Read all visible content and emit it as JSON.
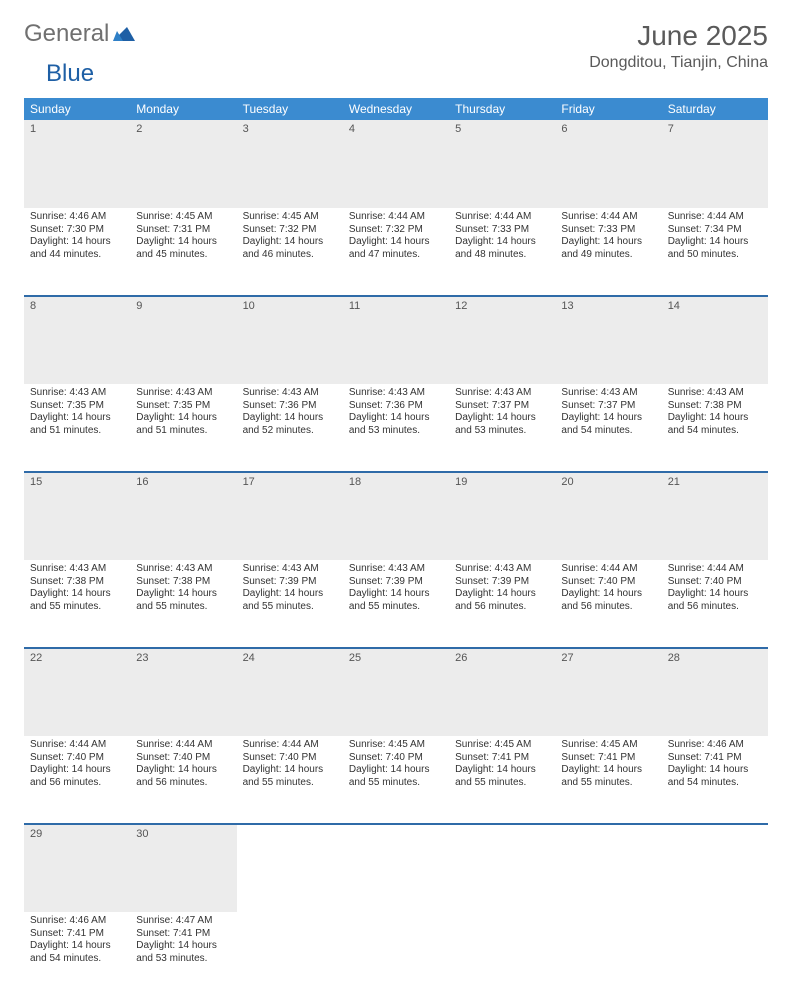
{
  "logo": {
    "part1": "General",
    "part2": "Blue"
  },
  "header": {
    "month_title": "June 2025",
    "location": "Dongditou, Tianjin, China"
  },
  "colors": {
    "header_bg": "#3b8bd0",
    "header_text": "#ffffff",
    "row_border": "#2f6ba8",
    "daynum_bg": "#ececec",
    "body_text": "#333333",
    "title_text": "#5a5a5a",
    "logo_blue": "#1e5fa5"
  },
  "daynames": [
    "Sunday",
    "Monday",
    "Tuesday",
    "Wednesday",
    "Thursday",
    "Friday",
    "Saturday"
  ],
  "weeks": [
    [
      {
        "n": "1",
        "sr": "Sunrise: 4:46 AM",
        "ss": "Sunset: 7:30 PM",
        "d1": "Daylight: 14 hours",
        "d2": "and 44 minutes."
      },
      {
        "n": "2",
        "sr": "Sunrise: 4:45 AM",
        "ss": "Sunset: 7:31 PM",
        "d1": "Daylight: 14 hours",
        "d2": "and 45 minutes."
      },
      {
        "n": "3",
        "sr": "Sunrise: 4:45 AM",
        "ss": "Sunset: 7:32 PM",
        "d1": "Daylight: 14 hours",
        "d2": "and 46 minutes."
      },
      {
        "n": "4",
        "sr": "Sunrise: 4:44 AM",
        "ss": "Sunset: 7:32 PM",
        "d1": "Daylight: 14 hours",
        "d2": "and 47 minutes."
      },
      {
        "n": "5",
        "sr": "Sunrise: 4:44 AM",
        "ss": "Sunset: 7:33 PM",
        "d1": "Daylight: 14 hours",
        "d2": "and 48 minutes."
      },
      {
        "n": "6",
        "sr": "Sunrise: 4:44 AM",
        "ss": "Sunset: 7:33 PM",
        "d1": "Daylight: 14 hours",
        "d2": "and 49 minutes."
      },
      {
        "n": "7",
        "sr": "Sunrise: 4:44 AM",
        "ss": "Sunset: 7:34 PM",
        "d1": "Daylight: 14 hours",
        "d2": "and 50 minutes."
      }
    ],
    [
      {
        "n": "8",
        "sr": "Sunrise: 4:43 AM",
        "ss": "Sunset: 7:35 PM",
        "d1": "Daylight: 14 hours",
        "d2": "and 51 minutes."
      },
      {
        "n": "9",
        "sr": "Sunrise: 4:43 AM",
        "ss": "Sunset: 7:35 PM",
        "d1": "Daylight: 14 hours",
        "d2": "and 51 minutes."
      },
      {
        "n": "10",
        "sr": "Sunrise: 4:43 AM",
        "ss": "Sunset: 7:36 PM",
        "d1": "Daylight: 14 hours",
        "d2": "and 52 minutes."
      },
      {
        "n": "11",
        "sr": "Sunrise: 4:43 AM",
        "ss": "Sunset: 7:36 PM",
        "d1": "Daylight: 14 hours",
        "d2": "and 53 minutes."
      },
      {
        "n": "12",
        "sr": "Sunrise: 4:43 AM",
        "ss": "Sunset: 7:37 PM",
        "d1": "Daylight: 14 hours",
        "d2": "and 53 minutes."
      },
      {
        "n": "13",
        "sr": "Sunrise: 4:43 AM",
        "ss": "Sunset: 7:37 PM",
        "d1": "Daylight: 14 hours",
        "d2": "and 54 minutes."
      },
      {
        "n": "14",
        "sr": "Sunrise: 4:43 AM",
        "ss": "Sunset: 7:38 PM",
        "d1": "Daylight: 14 hours",
        "d2": "and 54 minutes."
      }
    ],
    [
      {
        "n": "15",
        "sr": "Sunrise: 4:43 AM",
        "ss": "Sunset: 7:38 PM",
        "d1": "Daylight: 14 hours",
        "d2": "and 55 minutes."
      },
      {
        "n": "16",
        "sr": "Sunrise: 4:43 AM",
        "ss": "Sunset: 7:38 PM",
        "d1": "Daylight: 14 hours",
        "d2": "and 55 minutes."
      },
      {
        "n": "17",
        "sr": "Sunrise: 4:43 AM",
        "ss": "Sunset: 7:39 PM",
        "d1": "Daylight: 14 hours",
        "d2": "and 55 minutes."
      },
      {
        "n": "18",
        "sr": "Sunrise: 4:43 AM",
        "ss": "Sunset: 7:39 PM",
        "d1": "Daylight: 14 hours",
        "d2": "and 55 minutes."
      },
      {
        "n": "19",
        "sr": "Sunrise: 4:43 AM",
        "ss": "Sunset: 7:39 PM",
        "d1": "Daylight: 14 hours",
        "d2": "and 56 minutes."
      },
      {
        "n": "20",
        "sr": "Sunrise: 4:44 AM",
        "ss": "Sunset: 7:40 PM",
        "d1": "Daylight: 14 hours",
        "d2": "and 56 minutes."
      },
      {
        "n": "21",
        "sr": "Sunrise: 4:44 AM",
        "ss": "Sunset: 7:40 PM",
        "d1": "Daylight: 14 hours",
        "d2": "and 56 minutes."
      }
    ],
    [
      {
        "n": "22",
        "sr": "Sunrise: 4:44 AM",
        "ss": "Sunset: 7:40 PM",
        "d1": "Daylight: 14 hours",
        "d2": "and 56 minutes."
      },
      {
        "n": "23",
        "sr": "Sunrise: 4:44 AM",
        "ss": "Sunset: 7:40 PM",
        "d1": "Daylight: 14 hours",
        "d2": "and 56 minutes."
      },
      {
        "n": "24",
        "sr": "Sunrise: 4:44 AM",
        "ss": "Sunset: 7:40 PM",
        "d1": "Daylight: 14 hours",
        "d2": "and 55 minutes."
      },
      {
        "n": "25",
        "sr": "Sunrise: 4:45 AM",
        "ss": "Sunset: 7:40 PM",
        "d1": "Daylight: 14 hours",
        "d2": "and 55 minutes."
      },
      {
        "n": "26",
        "sr": "Sunrise: 4:45 AM",
        "ss": "Sunset: 7:41 PM",
        "d1": "Daylight: 14 hours",
        "d2": "and 55 minutes."
      },
      {
        "n": "27",
        "sr": "Sunrise: 4:45 AM",
        "ss": "Sunset: 7:41 PM",
        "d1": "Daylight: 14 hours",
        "d2": "and 55 minutes."
      },
      {
        "n": "28",
        "sr": "Sunrise: 4:46 AM",
        "ss": "Sunset: 7:41 PM",
        "d1": "Daylight: 14 hours",
        "d2": "and 54 minutes."
      }
    ],
    [
      {
        "n": "29",
        "sr": "Sunrise: 4:46 AM",
        "ss": "Sunset: 7:41 PM",
        "d1": "Daylight: 14 hours",
        "d2": "and 54 minutes."
      },
      {
        "n": "30",
        "sr": "Sunrise: 4:47 AM",
        "ss": "Sunset: 7:41 PM",
        "d1": "Daylight: 14 hours",
        "d2": "and 53 minutes."
      },
      null,
      null,
      null,
      null,
      null
    ]
  ]
}
